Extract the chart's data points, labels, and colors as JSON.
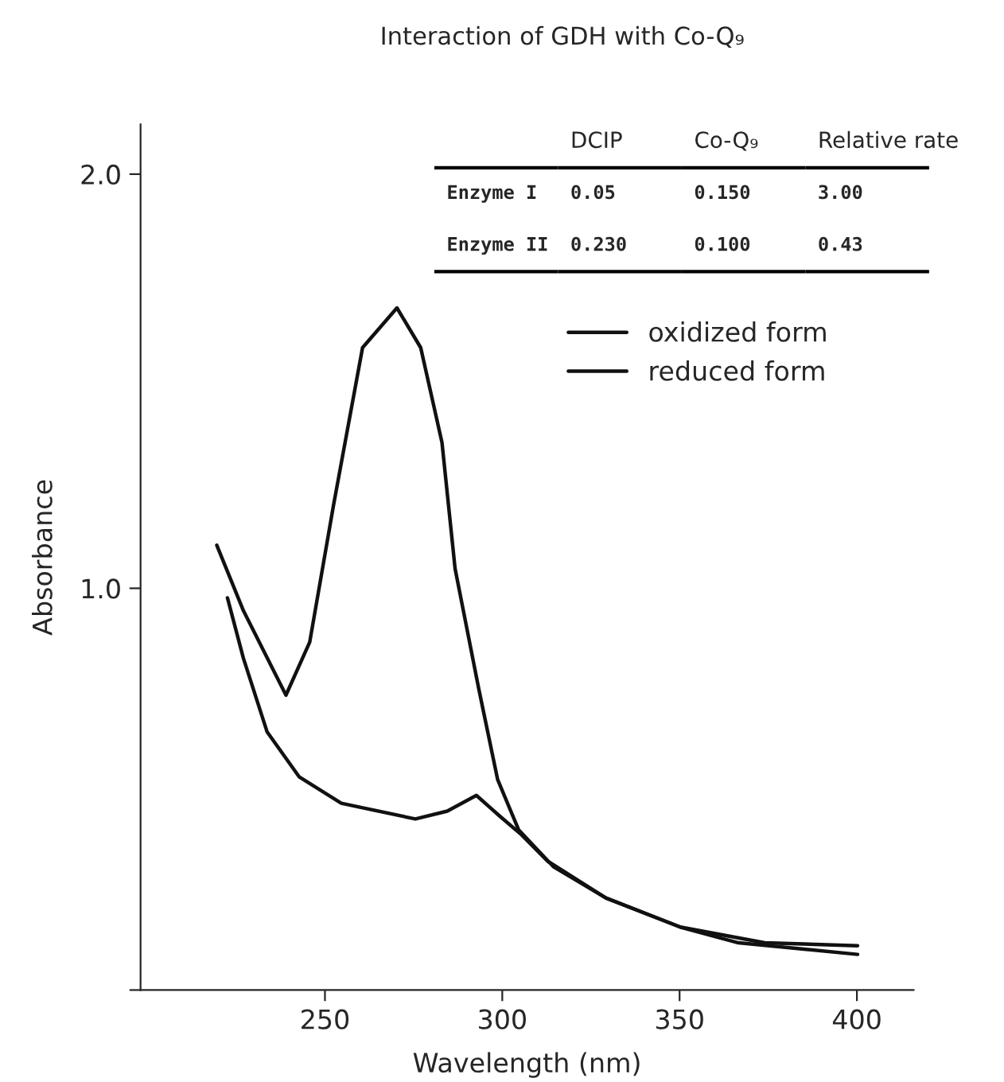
{
  "chart_data": {
    "type": "line",
    "title": "Interaction of GDH with Co-Q₉",
    "xlabel": "Wavelength (nm)",
    "ylabel": "Absorbance",
    "xlim": [
      198,
      416
    ],
    "ylim": [
      0.03,
      2.12
    ],
    "xticks": [
      250,
      300,
      350,
      400
    ],
    "yticks": [
      {
        "value": 0.03,
        "label": null
      },
      {
        "value": 1.0,
        "label": "1.0"
      },
      {
        "value": 2.0,
        "label": "2.0"
      }
    ],
    "grid": false,
    "legend": "top right",
    "line_style": "solid",
    "marker": "none",
    "annotations": [
      "DCIP",
      "Co-Q₉",
      "Relative rate",
      "Enzyme I",
      "0.05",
      "0.150",
      "3.00",
      "Enzyme II",
      "0.230",
      "0.100",
      "0.43"
    ],
    "series": [
      {
        "name": "oxidized form",
        "color": "#111111",
        "x": [
          219.5,
          227,
          239,
          245.7,
          252.4,
          260.6,
          270.3,
          277,
          283,
          286.7,
          293.4,
          298.7,
          304.6,
          314.4,
          329.3,
          350.2,
          374,
          400.2
        ],
        "values": [
          1.104,
          0.946,
          0.742,
          0.87,
          1.2,
          1.581,
          1.677,
          1.581,
          1.352,
          1.047,
          0.756,
          0.538,
          0.417,
          0.328,
          0.252,
          0.182,
          0.144,
          0.137
        ]
      },
      {
        "name": "reduced form",
        "color": "#111111",
        "x": [
          222.5,
          227,
          233.7,
          242.7,
          254.6,
          275.5,
          284.5,
          292.7,
          299.4,
          305.4,
          312.8,
          329.3,
          350.2,
          366.6,
          400.2
        ],
        "values": [
          0.977,
          0.831,
          0.653,
          0.545,
          0.481,
          0.443,
          0.462,
          0.5,
          0.449,
          0.405,
          0.341,
          0.252,
          0.182,
          0.144,
          0.116
        ]
      }
    ]
  }
}
